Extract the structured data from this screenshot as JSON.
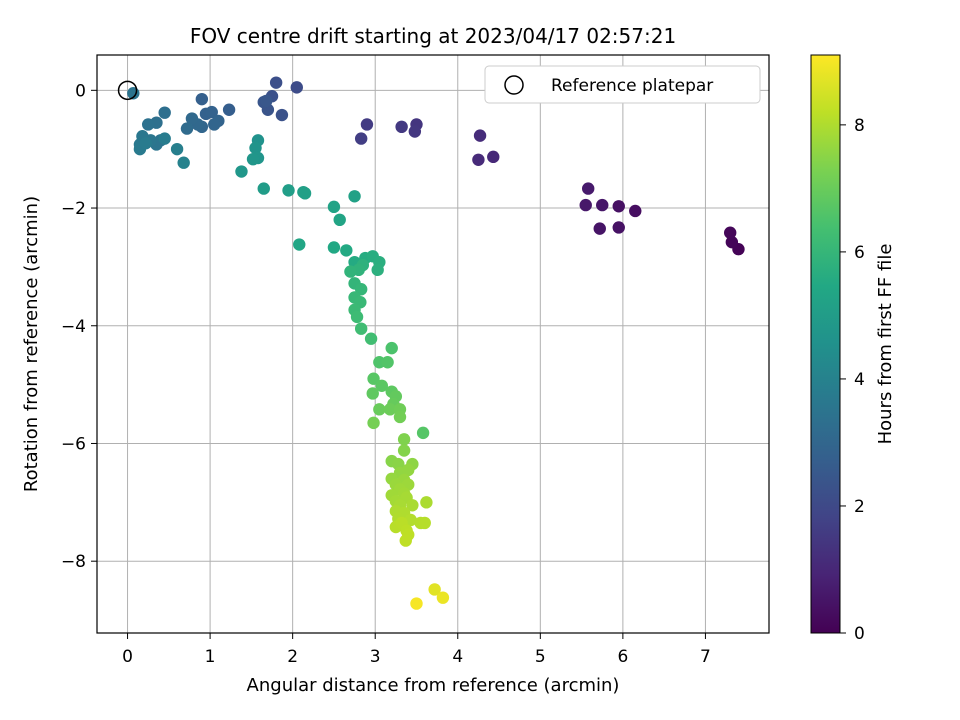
{
  "chart_data": {
    "type": "scatter",
    "title": "FOV centre drift starting at 2023/04/17 02:57:21",
    "xlabel": "Angular distance from reference (arcmin)",
    "ylabel": "Rotation from reference (arcmin)",
    "xlim": [
      -0.37,
      7.77
    ],
    "ylim": [
      -9.22,
      0.6
    ],
    "xticks": [
      0,
      1,
      2,
      3,
      4,
      5,
      6,
      7
    ],
    "yticks": [
      0,
      -2,
      -4,
      -6,
      -8
    ],
    "grid": true,
    "legend": {
      "position": "top-right",
      "entries": [
        "Reference platepar"
      ]
    },
    "reference_point": {
      "x": 0,
      "y": 0,
      "label": "Reference platepar"
    },
    "colorbar": {
      "label": "Hours from first FF file",
      "range": [
        0,
        9.1
      ],
      "ticks": [
        0,
        2,
        4,
        6,
        8
      ],
      "colormap": "viridis"
    },
    "series": [
      {
        "marker_color_by": "hours",
        "points": [
          {
            "x": 7.4,
            "y": -2.7,
            "h": 0.05
          },
          {
            "x": 7.32,
            "y": -2.58,
            "h": 0.1
          },
          {
            "x": 7.3,
            "y": -2.42,
            "h": 0.15
          },
          {
            "x": 6.15,
            "y": -2.05,
            "h": 0.35
          },
          {
            "x": 5.95,
            "y": -1.97,
            "h": 0.4
          },
          {
            "x": 5.95,
            "y": -2.33,
            "h": 0.45
          },
          {
            "x": 5.72,
            "y": -2.35,
            "h": 0.5
          },
          {
            "x": 5.75,
            "y": -1.95,
            "h": 0.55
          },
          {
            "x": 5.55,
            "y": -1.95,
            "h": 0.6
          },
          {
            "x": 5.58,
            "y": -1.67,
            "h": 0.65
          },
          {
            "x": 4.43,
            "y": -1.13,
            "h": 1.05
          },
          {
            "x": 4.25,
            "y": -1.18,
            "h": 1.1
          },
          {
            "x": 4.27,
            "y": -0.77,
            "h": 1.15
          },
          {
            "x": 3.5,
            "y": -0.58,
            "h": 1.4
          },
          {
            "x": 3.48,
            "y": -0.7,
            "h": 1.45
          },
          {
            "x": 3.32,
            "y": -0.62,
            "h": 1.5
          },
          {
            "x": 2.9,
            "y": -0.58,
            "h": 1.6
          },
          {
            "x": 2.83,
            "y": -0.82,
            "h": 1.65
          },
          {
            "x": 2.05,
            "y": 0.05,
            "h": 2.1
          },
          {
            "x": 1.8,
            "y": 0.13,
            "h": 2.2
          },
          {
            "x": 1.75,
            "y": -0.1,
            "h": 2.25
          },
          {
            "x": 1.87,
            "y": -0.42,
            "h": 2.3
          },
          {
            "x": 1.7,
            "y": -0.33,
            "h": 2.35
          },
          {
            "x": 1.65,
            "y": -0.2,
            "h": 2.4
          },
          {
            "x": 1.68,
            "y": -0.18,
            "h": 2.45
          },
          {
            "x": 1.23,
            "y": -0.33,
            "h": 2.7
          },
          {
            "x": 0.9,
            "y": -0.15,
            "h": 2.75
          },
          {
            "x": 0.95,
            "y": -0.4,
            "h": 2.8
          },
          {
            "x": 1.02,
            "y": -0.37,
            "h": 2.85
          },
          {
            "x": 1.1,
            "y": -0.52,
            "h": 2.9
          },
          {
            "x": 1.05,
            "y": -0.58,
            "h": 2.95
          },
          {
            "x": 0.9,
            "y": -0.62,
            "h": 3.0
          },
          {
            "x": 0.85,
            "y": -0.58,
            "h": 3.05
          },
          {
            "x": 0.78,
            "y": -0.48,
            "h": 3.1
          },
          {
            "x": 0.72,
            "y": -0.65,
            "h": 3.15
          },
          {
            "x": 0.45,
            "y": -0.38,
            "h": 3.3
          },
          {
            "x": 0.35,
            "y": -0.55,
            "h": 3.35
          },
          {
            "x": 0.25,
            "y": -0.58,
            "h": 3.4
          },
          {
            "x": 0.4,
            "y": -0.85,
            "h": 3.45
          },
          {
            "x": 0.35,
            "y": -0.92,
            "h": 3.5
          },
          {
            "x": 0.28,
            "y": -0.85,
            "h": 3.55
          },
          {
            "x": 0.18,
            "y": -0.78,
            "h": 3.6
          },
          {
            "x": 0.15,
            "y": -0.92,
            "h": 3.65
          },
          {
            "x": 0.15,
            "y": -1.0,
            "h": 3.7
          },
          {
            "x": 0.22,
            "y": -0.9,
            "h": 3.75
          },
          {
            "x": 0.45,
            "y": -0.82,
            "h": 3.8
          },
          {
            "x": 0.07,
            "y": -0.05,
            "h": 3.5
          },
          {
            "x": 0.6,
            "y": -1.0,
            "h": 3.9
          },
          {
            "x": 0.68,
            "y": -1.23,
            "h": 4.0
          },
          {
            "x": 1.58,
            "y": -0.85,
            "h": 4.6
          },
          {
            "x": 1.55,
            "y": -0.98,
            "h": 4.65
          },
          {
            "x": 1.58,
            "y": -1.15,
            "h": 4.7
          },
          {
            "x": 1.52,
            "y": -1.17,
            "h": 4.75
          },
          {
            "x": 1.38,
            "y": -1.38,
            "h": 4.8
          },
          {
            "x": 1.65,
            "y": -1.67,
            "h": 5.0
          },
          {
            "x": 1.95,
            "y": -1.7,
            "h": 5.05
          },
          {
            "x": 2.13,
            "y": -1.73,
            "h": 5.1
          },
          {
            "x": 2.15,
            "y": -1.75,
            "h": 5.15
          },
          {
            "x": 2.75,
            "y": -1.8,
            "h": 5.2
          },
          {
            "x": 2.5,
            "y": -1.98,
            "h": 5.25
          },
          {
            "x": 2.57,
            "y": -2.2,
            "h": 5.3
          },
          {
            "x": 2.08,
            "y": -2.62,
            "h": 5.4
          },
          {
            "x": 2.5,
            "y": -2.67,
            "h": 5.45
          },
          {
            "x": 2.65,
            "y": -2.72,
            "h": 5.5
          },
          {
            "x": 2.75,
            "y": -2.92,
            "h": 5.55
          },
          {
            "x": 2.88,
            "y": -2.85,
            "h": 5.6
          },
          {
            "x": 2.97,
            "y": -2.82,
            "h": 5.65
          },
          {
            "x": 3.05,
            "y": -2.92,
            "h": 5.7
          },
          {
            "x": 3.03,
            "y": -3.05,
            "h": 5.75
          },
          {
            "x": 2.85,
            "y": -2.97,
            "h": 5.8
          },
          {
            "x": 2.8,
            "y": -3.05,
            "h": 5.85
          },
          {
            "x": 2.7,
            "y": -3.08,
            "h": 5.9
          },
          {
            "x": 2.75,
            "y": -3.28,
            "h": 5.95
          },
          {
            "x": 2.83,
            "y": -3.38,
            "h": 6.0
          },
          {
            "x": 2.75,
            "y": -3.52,
            "h": 6.05
          },
          {
            "x": 2.82,
            "y": -3.6,
            "h": 6.1
          },
          {
            "x": 2.75,
            "y": -3.73,
            "h": 6.15
          },
          {
            "x": 2.78,
            "y": -3.85,
            "h": 6.2
          },
          {
            "x": 2.83,
            "y": -4.05,
            "h": 6.25
          },
          {
            "x": 2.95,
            "y": -4.22,
            "h": 6.3
          },
          {
            "x": 3.2,
            "y": -4.38,
            "h": 6.5
          },
          {
            "x": 3.05,
            "y": -4.62,
            "h": 6.55
          },
          {
            "x": 3.15,
            "y": -4.62,
            "h": 6.6
          },
          {
            "x": 3.58,
            "y": -5.82,
            "h": 6.65
          },
          {
            "x": 2.98,
            "y": -4.9,
            "h": 6.7
          },
          {
            "x": 3.08,
            "y": -5.02,
            "h": 6.75
          },
          {
            "x": 3.2,
            "y": -5.12,
            "h": 6.8
          },
          {
            "x": 2.97,
            "y": -5.15,
            "h": 6.85
          },
          {
            "x": 3.25,
            "y": -5.2,
            "h": 6.9
          },
          {
            "x": 3.22,
            "y": -5.33,
            "h": 6.95
          },
          {
            "x": 3.05,
            "y": -5.42,
            "h": 7.0
          },
          {
            "x": 3.18,
            "y": -5.42,
            "h": 7.05
          },
          {
            "x": 3.3,
            "y": -5.42,
            "h": 7.1
          },
          {
            "x": 3.3,
            "y": -5.55,
            "h": 7.15
          },
          {
            "x": 2.98,
            "y": -5.65,
            "h": 7.2
          },
          {
            "x": 3.35,
            "y": -5.93,
            "h": 7.35
          },
          {
            "x": 3.35,
            "y": -6.12,
            "h": 7.4
          },
          {
            "x": 3.2,
            "y": -6.3,
            "h": 7.45
          },
          {
            "x": 3.28,
            "y": -6.35,
            "h": 7.5
          },
          {
            "x": 3.45,
            "y": -6.35,
            "h": 7.55
          },
          {
            "x": 3.3,
            "y": -6.5,
            "h": 7.6
          },
          {
            "x": 3.4,
            "y": -6.45,
            "h": 7.62
          },
          {
            "x": 3.2,
            "y": -6.6,
            "h": 7.65
          },
          {
            "x": 3.35,
            "y": -6.62,
            "h": 7.7
          },
          {
            "x": 3.25,
            "y": -6.7,
            "h": 7.72
          },
          {
            "x": 3.4,
            "y": -6.7,
            "h": 7.75
          },
          {
            "x": 3.3,
            "y": -6.78,
            "h": 7.78
          },
          {
            "x": 3.2,
            "y": -6.88,
            "h": 7.8
          },
          {
            "x": 3.35,
            "y": -6.85,
            "h": 7.82
          },
          {
            "x": 3.25,
            "y": -6.98,
            "h": 7.85
          },
          {
            "x": 3.38,
            "y": -6.92,
            "h": 7.88
          },
          {
            "x": 3.3,
            "y": -7.05,
            "h": 7.9
          },
          {
            "x": 3.45,
            "y": -7.05,
            "h": 7.92
          },
          {
            "x": 3.62,
            "y": -7.0,
            "h": 7.95
          },
          {
            "x": 3.25,
            "y": -7.15,
            "h": 7.98
          },
          {
            "x": 3.35,
            "y": -7.18,
            "h": 8.0
          },
          {
            "x": 3.28,
            "y": -7.28,
            "h": 8.02
          },
          {
            "x": 3.43,
            "y": -7.3,
            "h": 8.05
          },
          {
            "x": 3.55,
            "y": -7.35,
            "h": 8.08
          },
          {
            "x": 3.6,
            "y": -7.35,
            "h": 8.1
          },
          {
            "x": 3.25,
            "y": -7.42,
            "h": 8.12
          },
          {
            "x": 3.32,
            "y": -7.35,
            "h": 8.15
          },
          {
            "x": 3.38,
            "y": -7.48,
            "h": 8.18
          },
          {
            "x": 3.4,
            "y": -7.55,
            "h": 8.2
          },
          {
            "x": 3.37,
            "y": -7.65,
            "h": 8.22
          },
          {
            "x": 3.72,
            "y": -8.48,
            "h": 8.7
          },
          {
            "x": 3.82,
            "y": -8.62,
            "h": 8.85
          },
          {
            "x": 3.5,
            "y": -8.72,
            "h": 9.0
          }
        ]
      }
    ]
  }
}
